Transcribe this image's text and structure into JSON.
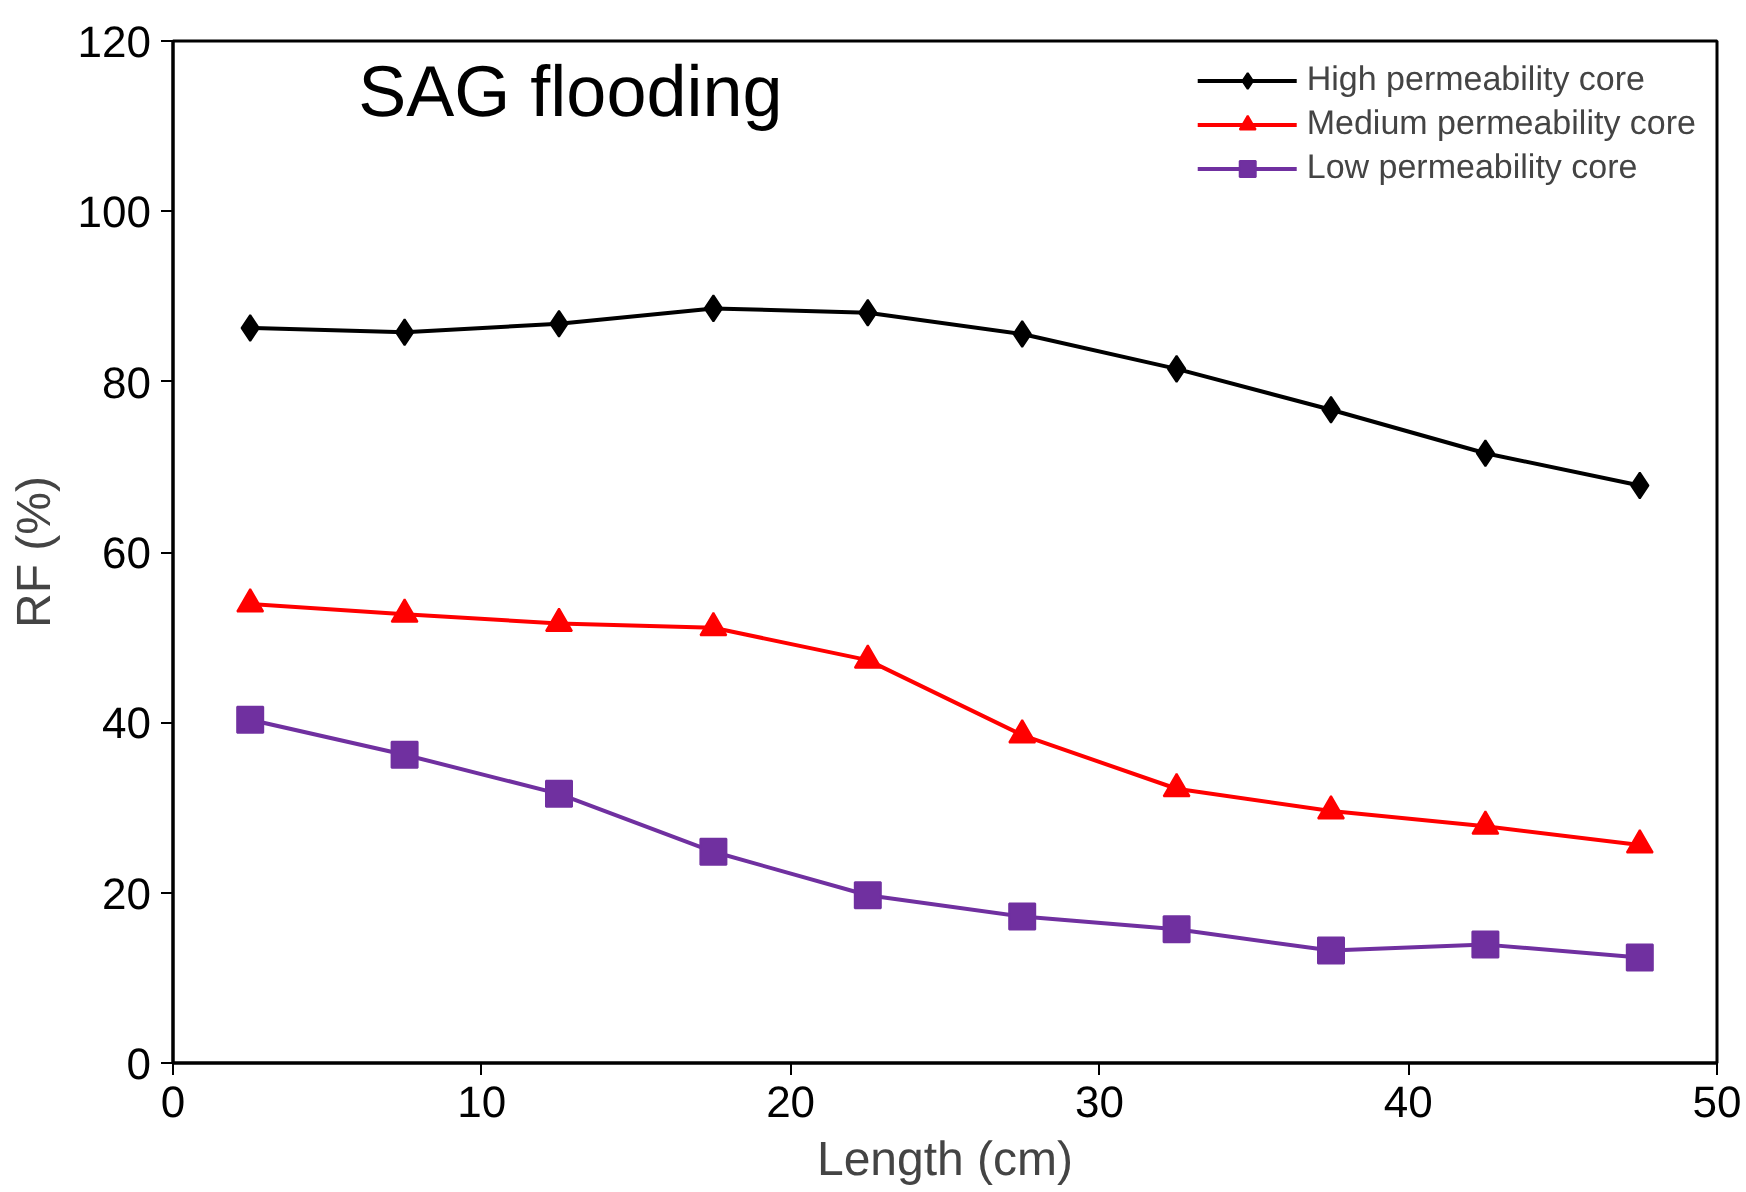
{
  "chart_data": {
    "type": "line",
    "title": "SAG flooding",
    "xlabel": "Length (cm)",
    "ylabel": "RF (%)",
    "x": [
      2.5,
      7.5,
      12.5,
      17.5,
      22.5,
      27.5,
      32.5,
      37.5,
      42.5,
      47.5
    ],
    "series": [
      {
        "name": "High permeability core",
        "color": "#000000",
        "marker": "diamond",
        "values": [
          86.3,
          85.8,
          86.8,
          88.6,
          88.1,
          85.6,
          81.5,
          76.7,
          71.6,
          67.8
        ]
      },
      {
        "name": "Medium permeability core",
        "color": "#ff0000",
        "marker": "triangle",
        "values": [
          53.9,
          52.7,
          51.6,
          51.1,
          47.3,
          38.5,
          32.2,
          29.6,
          27.8,
          25.6
        ]
      },
      {
        "name": "Low permeability core",
        "color": "#7030a0",
        "marker": "square",
        "values": [
          40.3,
          36.2,
          31.6,
          24.8,
          19.7,
          17.2,
          15.7,
          13.2,
          13.9,
          12.4
        ]
      }
    ],
    "xlim": [
      0,
      50
    ],
    "xticks": [
      0,
      10,
      20,
      30,
      40,
      50
    ],
    "ylim": [
      0,
      120
    ],
    "yticks": [
      0,
      20,
      40,
      60,
      80,
      100,
      120
    ],
    "grid": false,
    "legend": "top right"
  }
}
